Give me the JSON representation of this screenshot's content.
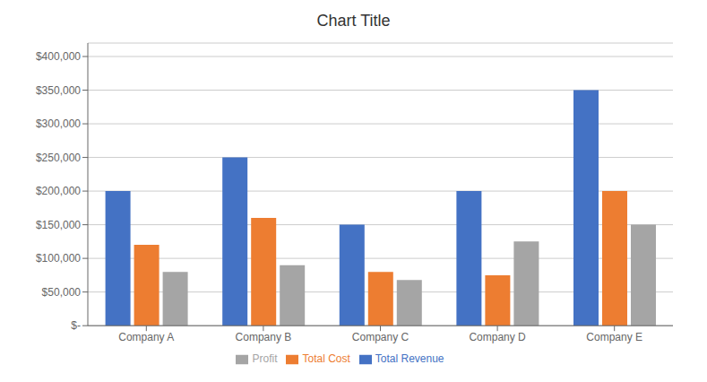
{
  "chart_data": {
    "type": "bar",
    "title": "Chart Title",
    "categories": [
      "Company A",
      "Company B",
      "Company C",
      "Company D",
      "Company E"
    ],
    "series": [
      {
        "name": "Total Revenue",
        "color": "#4472C4",
        "values": [
          200000,
          250000,
          150000,
          200000,
          350000
        ]
      },
      {
        "name": "Total Cost",
        "color": "#ED7D31",
        "values": [
          120000,
          160000,
          80000,
          75000,
          200000
        ]
      },
      {
        "name": "Profit",
        "color": "#A5A5A5",
        "values": [
          80000,
          90000,
          68000,
          125000,
          150000
        ]
      }
    ],
    "ylim": [
      0,
      420000
    ],
    "yticks": [
      {
        "value": 0,
        "label": "$-"
      },
      {
        "value": 50000,
        "label": "$50,000"
      },
      {
        "value": 100000,
        "label": "$100,000"
      },
      {
        "value": 150000,
        "label": "$150,000"
      },
      {
        "value": 200000,
        "label": "$200,000"
      },
      {
        "value": 250000,
        "label": "$250,000"
      },
      {
        "value": 300000,
        "label": "$300,000"
      },
      {
        "value": 350000,
        "label": "$350,000"
      },
      {
        "value": 400000,
        "label": "$400,000"
      }
    ],
    "grid": true,
    "legend": "bottom"
  }
}
